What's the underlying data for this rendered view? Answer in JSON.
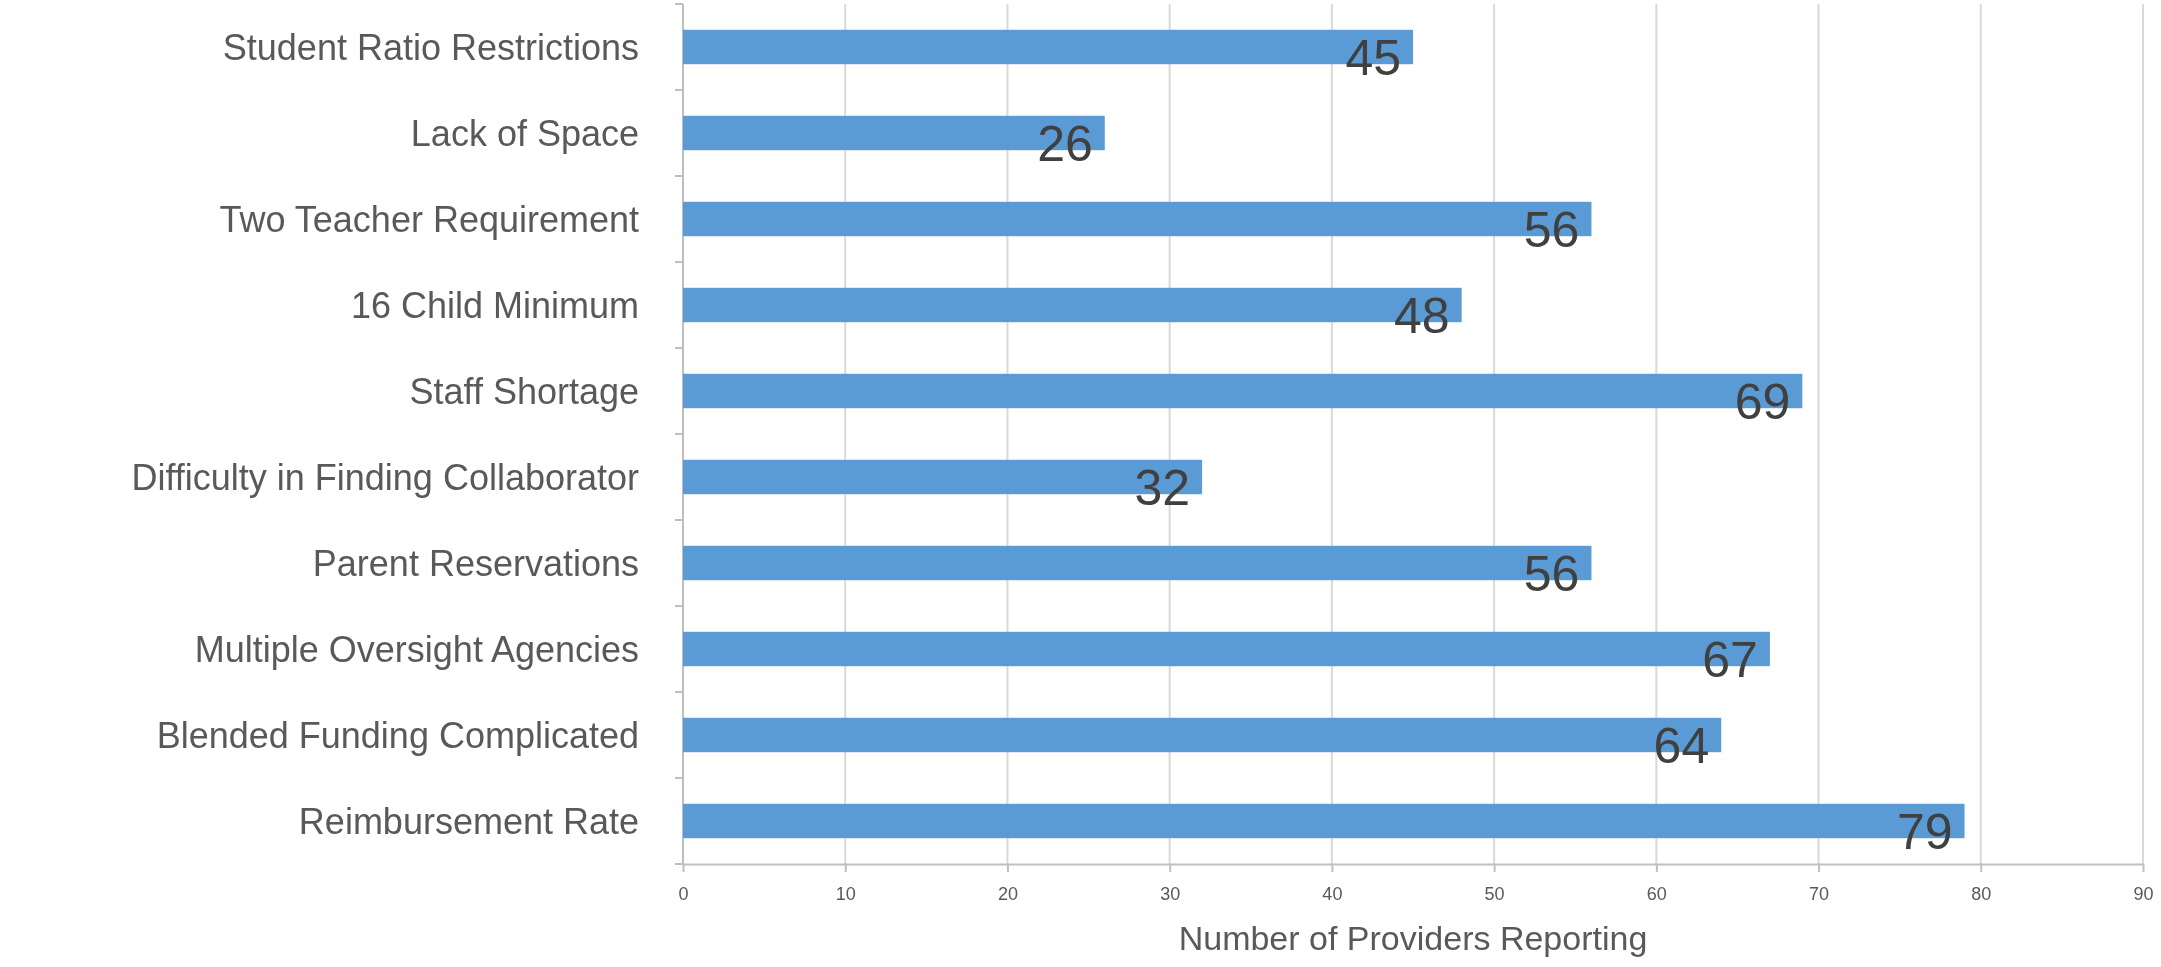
{
  "chart_data": {
    "type": "bar",
    "orientation": "horizontal",
    "xlabel": "Number of Providers Reporting",
    "categories": [
      "Student Ratio Restrictions",
      "Lack of Space",
      "Two Teacher Requirement",
      "16 Child Minimum",
      "Staff Shortage",
      "Difficulty in Finding Collaborator",
      "Parent Reservations",
      "Multiple Oversight Agencies",
      "Blended Funding Complicated",
      "Reimbursement Rate"
    ],
    "values": [
      45,
      26,
      56,
      48,
      69,
      32,
      56,
      67,
      64,
      79
    ],
    "color": "#5b9bd5",
    "xlim": [
      0,
      90
    ],
    "xticks": [
      0,
      10,
      20,
      30,
      40,
      50,
      60,
      70,
      80,
      90
    ],
    "grid": "x",
    "data_labels": true
  }
}
